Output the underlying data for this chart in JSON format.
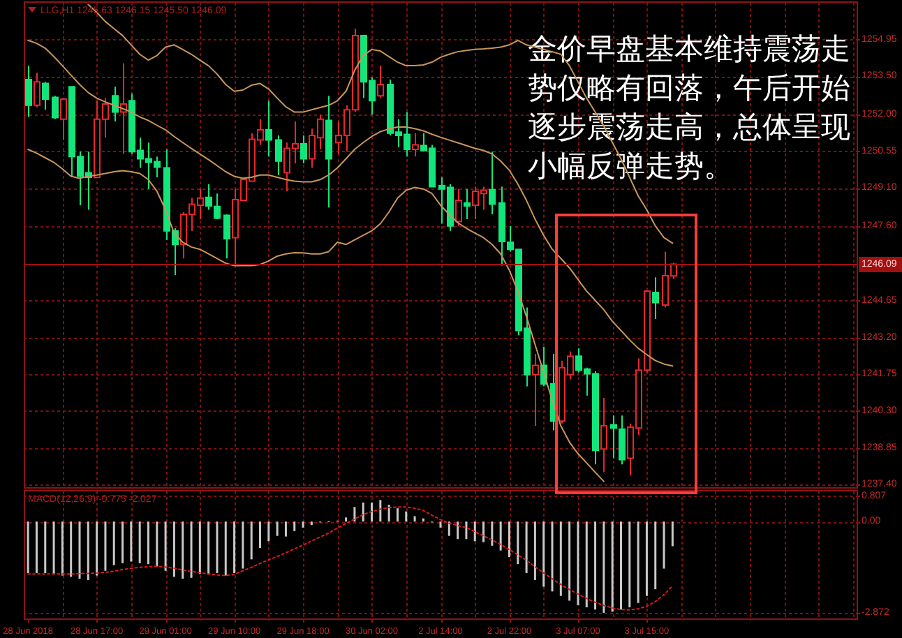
{
  "chart_data": [
    {
      "type": "candlestick",
      "title": "LLG,H1 1245.63 1246.15 1245.50 1246.09",
      "annotations": [
        "金价早盘基本维持震荡走势仅略有回落，午后开始逐步震荡走高，总体呈现小幅反弹走势。"
      ],
      "categories": [
        null,
        null,
        null,
        null,
        null,
        null,
        null,
        null,
        null,
        null,
        null,
        null,
        null,
        null,
        null,
        null,
        null,
        null,
        null,
        null,
        null,
        null,
        null,
        null,
        null,
        null,
        null,
        null,
        null,
        null,
        null,
        null,
        null,
        null,
        null,
        null,
        null,
        null,
        null,
        null,
        null,
        null,
        null,
        null,
        null,
        null,
        null,
        null,
        null,
        null,
        null,
        null,
        null,
        null,
        null,
        null,
        null,
        null,
        null,
        null,
        null,
        null,
        null,
        null,
        null,
        null,
        null,
        null,
        null,
        null,
        null,
        null,
        null,
        null,
        null,
        null,
        null,
        null,
        null,
        null,
        null,
        null,
        null,
        null,
        null,
        null,
        null,
        null,
        null,
        null,
        null,
        null,
        null,
        null,
        null,
        null,
        null
      ],
      "ohlc": [
        [
          1253.37,
          1253.92,
          1251.9,
          1252.36
        ],
        [
          1252.36,
          1253.64,
          1252.27,
          1253.28
        ],
        [
          1253.22,
          1253.28,
          1252.18,
          1252.6
        ],
        [
          1252.67,
          1252.73,
          1251.81,
          1251.87
        ],
        [
          1251.81,
          1252.64,
          1250.99,
          1252.6
        ],
        [
          1253.09,
          1253.09,
          1249.52,
          1250.34
        ],
        [
          1250.34,
          1250.53,
          1248.42,
          1249.56
        ],
        [
          1249.7,
          1250.53,
          1248.24,
          1249.52
        ],
        [
          1249.52,
          1252.54,
          1249.52,
          1251.81
        ],
        [
          1251.81,
          1252.64,
          1251.08,
          1252.41
        ],
        [
          1252.73,
          1253.09,
          1251.72,
          1252.09
        ],
        [
          1252.09,
          1254.01,
          1250.44,
          1252.41
        ],
        [
          1252.54,
          1252.82,
          1250.44,
          1250.53
        ],
        [
          1250.58,
          1251.08,
          1249.89,
          1250.25
        ],
        [
          1250.25,
          1250.89,
          1249.06,
          1250.11
        ],
        [
          1250.14,
          1250.34,
          1249.52,
          1249.92
        ],
        [
          1249.89,
          1250.62,
          1247.05,
          1247.41
        ],
        [
          1247.41,
          1247.51,
          1245.67,
          1246.87
        ],
        [
          1246.87,
          1248.15,
          1246.32,
          1248.06
        ],
        [
          1248.06,
          1248.7,
          1247.41,
          1248.46
        ],
        [
          1248.42,
          1249.06,
          1247.87,
          1248.7
        ],
        [
          1248.73,
          1249.25,
          1248.24,
          1248.39
        ],
        [
          1248.37,
          1248.88,
          1247.87,
          1247.91
        ],
        [
          1248.02,
          1248.06,
          1246.32,
          1247.1
        ],
        [
          1247.14,
          1249.06,
          1246.04,
          1248.64
        ],
        [
          1248.61,
          1249.52,
          1248.61,
          1249.43
        ],
        [
          1249.37,
          1251.26,
          1249.34,
          1251.02
        ],
        [
          1250.99,
          1251.81,
          1250.8,
          1251.39
        ],
        [
          1251.39,
          1252.54,
          1250.34,
          1250.99
        ],
        [
          1250.99,
          1251.17,
          1249.61,
          1250.16
        ],
        [
          1249.7,
          1250.89,
          1248.97,
          1250.66
        ],
        [
          1250.66,
          1251.72,
          1250.07,
          1250.84
        ],
        [
          1250.84,
          1251.17,
          1250.07,
          1250.25
        ],
        [
          1250.25,
          1251.44,
          1249.89,
          1251.17
        ],
        [
          1251.08,
          1251.99,
          1250.62,
          1251.81
        ],
        [
          1251.76,
          1252.73,
          1248.33,
          1250.25
        ],
        [
          1250.89,
          1251.72,
          1250.44,
          1251.17
        ],
        [
          1251.17,
          1252.36,
          1250.53,
          1252.18
        ],
        [
          1252.18,
          1255.38,
          1252.09,
          1255.11
        ],
        [
          1255.11,
          1255.11,
          1252.64,
          1253.28
        ],
        [
          1253.33,
          1253.46,
          1251.99,
          1252.54
        ],
        [
          1252.73,
          1253.92,
          1252.64,
          1253.18
        ],
        [
          1253.18,
          1253.37,
          1251.17,
          1251.26
        ],
        [
          1251.3,
          1251.81,
          1250.71,
          1251.17
        ],
        [
          1251.21,
          1252.09,
          1250.34,
          1250.62
        ],
        [
          1250.62,
          1251.26,
          1250.34,
          1250.8
        ],
        [
          1250.77,
          1251.26,
          1250.53,
          1250.58
        ],
        [
          1250.66,
          1250.8,
          1249.12,
          1249.15
        ],
        [
          1249.19,
          1249.52,
          1247.69,
          1249.06
        ],
        [
          1249.12,
          1249.25,
          1247.41,
          1247.6
        ],
        [
          1247.78,
          1249.06,
          1247.6,
          1248.61
        ],
        [
          1248.51,
          1249.06,
          1247.87,
          1248.39
        ],
        [
          1248.42,
          1249.15,
          1247.87,
          1248.97
        ],
        [
          1248.88,
          1249.15,
          1248.24,
          1249.01
        ],
        [
          1249.03,
          1250.53,
          1248.06,
          1248.46
        ],
        [
          1248.51,
          1249.15,
          1246.04,
          1246.99
        ],
        [
          1246.96,
          1247.6,
          1246.59,
          1246.68
        ],
        [
          1246.68,
          1246.68,
          1243.29,
          1243.48
        ],
        [
          1243.57,
          1244.39,
          1241.28,
          1241.74
        ],
        [
          1241.74,
          1242.56,
          1239.72,
          1242.1
        ],
        [
          1242.1,
          1242.84,
          1241.28,
          1241.37
        ],
        [
          1241.37,
          1242.56,
          1239.54,
          1239.91
        ],
        [
          1239.91,
          1242.29,
          1239.81,
          1242.01
        ],
        [
          1241.74,
          1242.65,
          1241.55,
          1242.47
        ],
        [
          1242.47,
          1242.78,
          1241.83,
          1241.92
        ],
        [
          1241.96,
          1242.01,
          1240.91,
          1241.77
        ],
        [
          1241.77,
          1241.87,
          1238.2,
          1238.75
        ],
        [
          1238.81,
          1240.82,
          1237.89,
          1239.72
        ],
        [
          1239.76,
          1240.13,
          1238.44,
          1239.63
        ],
        [
          1239.59,
          1240.13,
          1238.2,
          1238.39
        ],
        [
          1238.44,
          1239.81,
          1237.76,
          1239.67
        ],
        [
          1239.63,
          1242.38,
          1239.36,
          1241.92
        ],
        [
          1241.92,
          1245.03,
          1241.83,
          1245.03
        ],
        [
          1244.98,
          1245.58,
          1243.93,
          1244.58
        ],
        [
          1244.48,
          1246.59,
          1244.39,
          1245.64
        ],
        [
          1245.63,
          1246.15,
          1245.5,
          1246.09
        ],
        null,
        null,
        null,
        null,
        null,
        null,
        null,
        null,
        null,
        null,
        null,
        null,
        null,
        null,
        null,
        null,
        null,
        null,
        null,
        null,
        null
      ],
      "colors": [
        "#12e67a",
        "#e8262a",
        "#12e67a",
        "#12e67a",
        "#e8262a",
        "#12e67a",
        "#12e67a",
        "#12e67a",
        "#e8262a",
        "#e8262a",
        "#12e67a",
        "#e8262a",
        "#12e67a",
        "#12e67a",
        "#12e67a",
        "#12e67a",
        "#12e67a",
        "#12e67a",
        "#e8262a",
        "#e8262a",
        "#e8262a",
        "#12e67a",
        "#12e67a",
        "#12e67a",
        "#e8262a",
        "#e8262a",
        "#e8262a",
        "#e8262a",
        "#12e67a",
        "#12e67a",
        "#e8262a",
        "#e8262a",
        "#12e67a",
        "#e8262a",
        "#e8262a",
        "#12e67a",
        "#e8262a",
        "#e8262a",
        "#e8262a",
        "#12e67a",
        "#12e67a",
        "#e8262a",
        "#12e67a",
        "#12e67a",
        "#12e67a",
        "#e8262a",
        "#12e67a",
        "#12e67a",
        "#12e67a",
        "#12e67a",
        "#e8262a",
        "#12e67a",
        "#e8262a",
        "#e8262a",
        "#12e67a",
        "#12e67a",
        "#12e67a",
        "#12e67a",
        "#12e67a",
        "#e8262a",
        "#12e67a",
        "#12e67a",
        "#e8262a",
        "#e8262a",
        "#12e67a",
        "#12e67a",
        "#12e67a",
        "#e8262a",
        "#12e67a",
        "#12e67a",
        "#e8262a",
        "#e8262a",
        "#e8262a",
        "#12e67a",
        "#e8262a",
        "#e8262a",
        null,
        null,
        null,
        null,
        null,
        null,
        null,
        null,
        null,
        null,
        null,
        null,
        null,
        null,
        null,
        null,
        null,
        null,
        null,
        null,
        null
      ],
      "series": [
        {
          "type": "line",
          "color": "#c8965a",
          "values": [
            null,
            null,
            null,
            null,
            null,
            null,
            null,
            1256.33,
            1256.02,
            1255.66,
            1255.38,
            1255.11,
            1254.74,
            1254.37,
            1254.14,
            1254.32,
            1254.65,
            1254.74,
            1254.56,
            1254.37,
            1254.14,
            1253.92,
            1253.59,
            1253.18,
            1252.91,
            1252.96,
            1253.15,
            1253.22,
            1253.0,
            1252.64,
            1252.3,
            1252.09,
            1252.09,
            1252.18,
            1252.27,
            1252.36,
            1252.54,
            1252.91,
            1253.73,
            1254.32,
            1254.56,
            1254.5,
            1254.28,
            1254.06,
            1253.92,
            1253.92,
            1253.95,
            1254.06,
            1254.25,
            1254.37,
            1254.47,
            1254.52,
            1254.56,
            1254.58,
            1254.61,
            1254.65,
            1254.74,
            1254.92,
            1254.74,
            1254.65,
            1254.56,
            1254.47,
            1254.37,
            1253.92,
            1253.28,
            1252.64,
            1252.09,
            1251.54,
            1250.89,
            1250.25,
            1249.52,
            1248.79,
            1248.24,
            1247.6,
            1247.14,
            1246.92,
            null,
            null,
            null,
            null,
            null,
            null,
            null,
            null,
            null,
            null,
            null,
            null,
            null,
            null,
            null,
            null,
            null,
            null,
            null,
            null,
            null
          ]
        },
        {
          "type": "line",
          "color": "#c8965a",
          "values": [
            1254.92,
            1254.8,
            1254.61,
            1254.28,
            1253.92,
            1253.55,
            1253.18,
            1252.86,
            1252.64,
            1252.49,
            1252.36,
            1252.23,
            1252.09,
            1251.9,
            1251.76,
            1251.57,
            1251.39,
            1251.13,
            1250.89,
            1250.66,
            1250.44,
            1250.22,
            1249.98,
            1249.74,
            1249.56,
            1249.48,
            1249.52,
            1249.61,
            1249.61,
            1249.52,
            1249.43,
            1249.37,
            1249.34,
            1249.34,
            1249.43,
            1249.61,
            1249.89,
            1250.25,
            1250.62,
            1250.89,
            1251.13,
            1251.32,
            1251.43,
            1251.5,
            1251.5,
            1251.44,
            1251.35,
            1251.22,
            1251.1,
            1250.99,
            1250.88,
            1250.77,
            1250.66,
            1250.58,
            1250.44,
            1250.16,
            1249.8,
            1249.25,
            1248.61,
            1247.87,
            1247.23,
            1246.68,
            1246.32,
            1245.95,
            1245.49,
            1245.03,
            1244.67,
            1244.3,
            1243.84,
            1243.48,
            1243.11,
            1242.78,
            1242.53,
            1242.29,
            1242.16,
            1242.08,
            null,
            null,
            null,
            null,
            null,
            null,
            null,
            null,
            null,
            null,
            null,
            null,
            null,
            null,
            null,
            null,
            null,
            null,
            null,
            null,
            null
          ]
        },
        {
          "type": "line",
          "color": "#c8965a",
          "values": [
            1250.62,
            1250.47,
            1250.29,
            1250.11,
            1249.85,
            1249.56,
            1249.48,
            1249.56,
            1249.61,
            1249.67,
            1249.74,
            1249.78,
            1249.74,
            1249.67,
            1249.43,
            1248.97,
            1248.24,
            1247.32,
            1246.96,
            1246.77,
            1246.68,
            1246.5,
            1246.32,
            1246.13,
            1246.04,
            1246.04,
            1246.04,
            1246.08,
            1246.22,
            1246.41,
            1246.5,
            1246.55,
            1246.54,
            1246.5,
            1246.5,
            1246.59,
            1246.96,
            1246.87,
            1247.05,
            1247.23,
            1247.41,
            1247.69,
            1248.15,
            1248.7,
            1249.01,
            1249.12,
            1249.06,
            1248.88,
            1248.42,
            1248.06,
            1247.73,
            1247.51,
            1247.32,
            1247.14,
            1246.87,
            1246.5,
            1245.86,
            1245.03,
            1244.03,
            1242.93,
            1241.83,
            1240.73,
            1239.72,
            1239.08,
            1238.62,
            1238.26,
            1237.89,
            1237.53,
            null,
            null,
            null,
            null,
            null,
            null,
            null,
            null,
            null,
            null,
            null,
            null,
            null,
            null,
            null,
            null,
            null,
            null,
            null,
            null,
            null,
            null,
            null,
            null,
            null,
            null,
            null,
            null,
            null
          ]
        }
      ],
      "ylim": [
        1237.3,
        1256.4
      ],
      "yticks": [
        {
          "value": 1237.4,
          "label": "1237.40"
        },
        1238.85,
        {
          "value": 1240.3,
          "label": "1240.30"
        },
        1241.75,
        {
          "value": 1243.2,
          "label": "1243.20"
        },
        1244.65,
        {
          "value": 1247.6,
          "label": "1247.60"
        },
        {
          "value": 1249.1,
          "label": "1249.10"
        },
        1250.55,
        {
          "value": 1252,
          "label": "1252.00"
        },
        {
          "value": 1253.5,
          "label": "1253.50"
        },
        1254.95
      ],
      "ref_lines": [
        {
          "axis": "y",
          "value": 1246.09,
          "label": "1246.09",
          "color": "#a01010"
        }
      ],
      "grid": true,
      "tick_labels": "y"
    },
    {
      "type": "bar",
      "title": "MACD(12,26,9) -0.775 -2.027",
      "categories": [
        "28 Jun 2018",
        null,
        null,
        null,
        null,
        null,
        null,
        null,
        "28 Jun 17:00",
        null,
        null,
        null,
        null,
        null,
        null,
        null,
        "29 Jun 01:00",
        null,
        null,
        null,
        null,
        null,
        null,
        null,
        "29 Jun 10:00",
        null,
        null,
        null,
        null,
        null,
        null,
        null,
        "29 Jun 18:00",
        null,
        null,
        null,
        null,
        null,
        null,
        null,
        "30 Jun 02:00",
        null,
        null,
        null,
        null,
        null,
        null,
        null,
        "2 Jul 14:00",
        null,
        null,
        null,
        null,
        null,
        null,
        null,
        "2 Jul 22:00",
        null,
        null,
        null,
        null,
        null,
        null,
        null,
        "3 Jul 07:00",
        null,
        null,
        null,
        null,
        null,
        null,
        null,
        "3 Jul 15:00",
        null,
        null,
        null
      ],
      "series": [
        {
          "color": "#c8c8c8",
          "values": [
            -1.62,
            -1.62,
            -1.62,
            -1.65,
            -1.7,
            -1.74,
            -1.8,
            -1.84,
            -1.7,
            -1.55,
            -1.37,
            -1.31,
            -1.26,
            -1.31,
            -1.34,
            -1.41,
            -1.55,
            -1.74,
            -1.8,
            -1.77,
            -1.65,
            -1.67,
            -1.62,
            -1.7,
            -1.62,
            -1.48,
            -1.19,
            -0.83,
            -0.62,
            -0.45,
            -0.47,
            -0.3,
            -0.19,
            -0.11,
            -0.02,
            0.01,
            0.03,
            0.13,
            0.46,
            0.6,
            0.6,
            0.68,
            0.53,
            0.42,
            0.32,
            0.17,
            0.1,
            -0.01,
            -0.19,
            -0.45,
            -0.55,
            -0.55,
            -0.62,
            -0.65,
            -0.76,
            -0.91,
            -1.12,
            -1.34,
            -1.62,
            -1.84,
            -2.05,
            -2.2,
            -2.34,
            -2.49,
            -2.63,
            -2.7,
            -2.77,
            -2.872,
            -2.84,
            -2.77,
            -2.7,
            -2.56,
            -2.34,
            -2.13,
            -1.48,
            -0.775
          ]
        },
        {
          "type": "line",
          "color": "#e01818",
          "line_style": "dotted",
          "values": [
            -1.65,
            -1.65,
            -1.65,
            -1.65,
            -1.65,
            -1.65,
            -1.64,
            -1.63,
            -1.62,
            -1.6,
            -1.56,
            -1.51,
            -1.47,
            -1.44,
            -1.42,
            -1.41,
            -1.43,
            -1.47,
            -1.52,
            -1.57,
            -1.61,
            -1.65,
            -1.68,
            -1.7,
            -1.66,
            -1.55,
            -1.44,
            -1.32,
            -1.2,
            -1.1,
            -0.98,
            -0.86,
            -0.74,
            -0.61,
            -0.48,
            -0.36,
            -0.2,
            -0.06,
            0.08,
            0.22,
            0.32,
            0.39,
            0.44,
            0.46,
            0.46,
            0.42,
            0.35,
            0.2,
            0.06,
            -0.05,
            -0.12,
            -0.19,
            -0.32,
            -0.45,
            -0.58,
            -0.72,
            -0.88,
            -1.05,
            -1.22,
            -1.42,
            -1.62,
            -1.8,
            -1.98,
            -2.14,
            -2.28,
            -2.42,
            -2.54,
            -2.64,
            -2.72,
            -2.77,
            -2.78,
            -2.75,
            -2.66,
            -2.52,
            -2.3,
            -2.027
          ]
        }
      ],
      "ylim": [
        -3.05,
        0.95
      ],
      "yticks": [
        0.807,
        {
          "value": 0,
          "label": "0.00"
        },
        -2.872
      ],
      "grid": true
    }
  ]
}
